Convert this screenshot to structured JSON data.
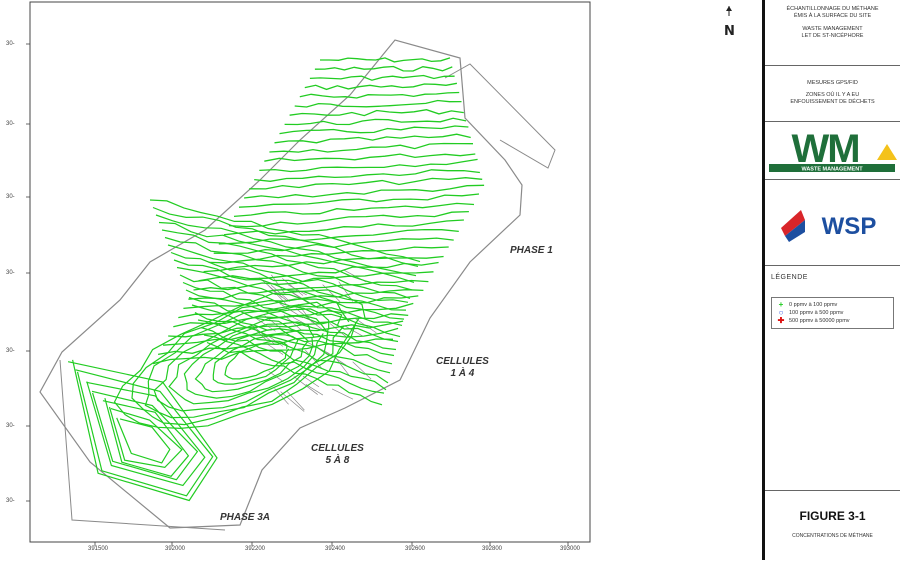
{
  "map": {
    "y_ticks": [
      "30-",
      "30-",
      "30-",
      "30-",
      "30-",
      "30-",
      "30-"
    ],
    "x_ticks": [
      "391500",
      "392000",
      "392200",
      "392400",
      "392600",
      "392800",
      "393000"
    ],
    "labels": {
      "phase1": "PHASE 1",
      "cellules14_line1": "CELLULES",
      "cellules14_line2": "1 À 4",
      "cellules58_line1": "CELLULES",
      "cellules58_line2": "5 À 8",
      "phase3a": "PHASE 3A"
    },
    "contour_color": "#22cc22",
    "road_color": "#8a8a8a"
  },
  "north_arrow": {
    "icon": "north-arrow-icon",
    "label": "N"
  },
  "title_block": {
    "header_line1": "ÉCHANTILLONNAGE DU MÉTHANE",
    "header_line2": "ÉMIS À LA SURFACE DU SITE",
    "header_line3": "WASTE MANAGEMENT",
    "header_line4": "LET DE ST-NICÉPHORE",
    "measures_line1": "MESURES GPS/FID",
    "measures_line2": "ZONES OÙ IL Y A EU",
    "measures_line3": "ENFOUISSEMENT DE DÉCHETS",
    "wm_logo_text": "WM",
    "wm_logo_subtext": "WASTE MANAGEMENT",
    "wm_color": "#1f6f3a",
    "wm_accent": "#f4c21a",
    "wsp_logo_text": "WSP",
    "wsp_color": "#d9252a",
    "legend_title": "LÉGENDE",
    "legend": [
      {
        "symbol": "+",
        "color": "#22cc22",
        "text": "0 ppmv  à  100 ppmv"
      },
      {
        "symbol": "○",
        "color": "#3355dd",
        "text": "100 ppmv  à  500 ppmv"
      },
      {
        "symbol": "✚",
        "color": "#dd1111",
        "text": "500 ppmv  à  50000 ppmv"
      }
    ],
    "figure_number": "FIGURE 3-1",
    "figure_caption": "CONCENTRATIONS DE MÉTHANE"
  }
}
